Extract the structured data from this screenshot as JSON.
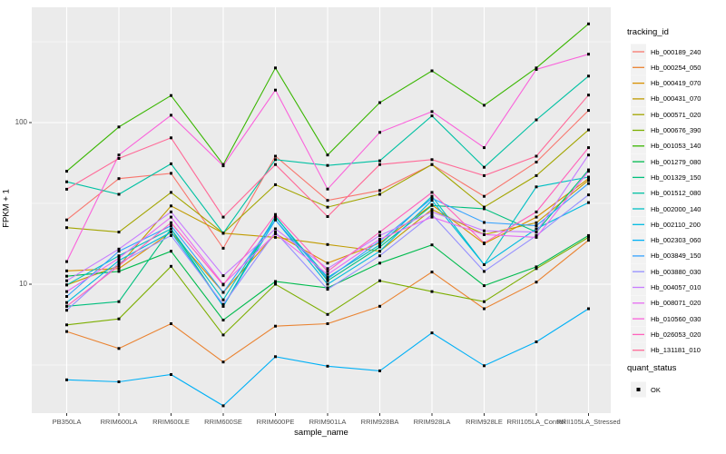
{
  "colors": {
    "page_bg": "#FFFFFF",
    "panel_bg": "#EBEBEB",
    "grid": "#FFFFFF",
    "legend_key_bg": "#F2F2F2",
    "axis_text": "#4D4D4D",
    "title_text": "#000000",
    "point": "#000000",
    "tick_mark": "#333333"
  },
  "chart_data": {
    "type": "line",
    "title": "",
    "xlabel": "sample_name",
    "ylabel": "FPKM + 1",
    "y_scale": "log10",
    "y_ticks": [
      10,
      100
    ],
    "y_minor_ticks": [
      3.162,
      31.62,
      316.2
    ],
    "ylim": [
      1.55,
      520
    ],
    "grid": "on",
    "point_shape": "filled-black-square",
    "categories": [
      "PB350LA",
      "RRIM600LA",
      "RRIM600LE",
      "RRIM600SE",
      "RRIM600PE",
      "RRIM901LA",
      "RRIM928BA",
      "RRIM928LA",
      "RRIM928LE",
      "RRII105LA_Control",
      "RRII105LA_Stressed"
    ],
    "legend": {
      "title": "tracking_id",
      "position": "right"
    },
    "legend2": {
      "title": "quant_status",
      "items": [
        {
          "label": "OK"
        }
      ]
    },
    "series": [
      {
        "name": "Hb_000189_240",
        "color": "#F8766D",
        "values": [
          25,
          45,
          48.5,
          16.7,
          62,
          33,
          38,
          55,
          35,
          57,
          119
        ]
      },
      {
        "name": "Hb_000254_050",
        "color": "#EA8331",
        "values": [
          5.1,
          4.0,
          5.7,
          3.3,
          5.5,
          5.7,
          7.3,
          11.9,
          7.05,
          10.3,
          18.7
        ]
      },
      {
        "name": "Hb_000419_070",
        "color": "#D89000",
        "values": [
          12.1,
          12.5,
          21,
          8.9,
          20.5,
          13.5,
          18,
          31,
          17.8,
          26,
          45
        ]
      },
      {
        "name": "Hb_000431_070",
        "color": "#C09B00",
        "values": [
          9.9,
          13,
          30.5,
          20.7,
          19.5,
          17.6,
          16,
          29,
          20.3,
          24,
          44
        ]
      },
      {
        "name": "Hb_000571_020",
        "color": "#A3A500",
        "values": [
          22.4,
          21,
          37,
          20.7,
          41.3,
          30,
          36,
          55,
          30,
          47,
          90
        ]
      },
      {
        "name": "Hb_000676_390",
        "color": "#7CAE00",
        "values": [
          5.6,
          6.1,
          12.9,
          4.85,
          10,
          6.5,
          10.5,
          9.0,
          7.8,
          12.5,
          19.5
        ]
      },
      {
        "name": "Hb_001053_140",
        "color": "#39B600",
        "values": [
          50,
          94,
          147,
          55,
          218,
          63,
          133,
          209,
          128,
          218,
          408
        ]
      },
      {
        "name": "Hb_001279_080",
        "color": "#00BB4E",
        "values": [
          11.2,
          12,
          16,
          6.0,
          10.4,
          9.5,
          13.5,
          17.5,
          9.8,
          12.8,
          20
        ]
      },
      {
        "name": "Hb_001329_150",
        "color": "#00BF7D",
        "values": [
          7.3,
          7.8,
          22,
          7.3,
          26.3,
          10.5,
          17,
          30.7,
          29.3,
          21,
          51
        ]
      },
      {
        "name": "Hb_001512_080",
        "color": "#00C1A3",
        "values": [
          43,
          36,
          55.6,
          20.7,
          59,
          54.3,
          58,
          110,
          52.9,
          104,
          194
        ]
      },
      {
        "name": "Hb_002000_140",
        "color": "#00BFC4",
        "values": [
          9.9,
          15,
          22,
          8.0,
          26,
          11,
          17.5,
          35,
          13.2,
          40,
          46
        ]
      },
      {
        "name": "Hb_002110_200",
        "color": "#00BAE0",
        "values": [
          7.7,
          14,
          21,
          7.3,
          25,
          10,
          16,
          33,
          13.2,
          22,
          32
        ]
      },
      {
        "name": "Hb_002303_060",
        "color": "#00B0F6",
        "values": [
          2.56,
          2.49,
          2.76,
          1.77,
          3.56,
          3.11,
          2.91,
          5.0,
          3.13,
          4.4,
          7.05
        ]
      },
      {
        "name": "Hb_003849_150",
        "color": "#35A2FF",
        "values": [
          8.4,
          16,
          23,
          8.9,
          25,
          10.8,
          18.5,
          34,
          24.1,
          23,
          42
        ]
      },
      {
        "name": "Hb_003880_030",
        "color": "#9590FF",
        "values": [
          6.9,
          13.5,
          20,
          7.5,
          21,
          9.3,
          15,
          27,
          12,
          20,
          35.7
        ]
      },
      {
        "name": "Hb_004057_010",
        "color": "#C77CFF",
        "values": [
          10.5,
          16.5,
          28,
          11.3,
          22,
          12.5,
          20,
          28,
          21.4,
          21,
          63
        ]
      },
      {
        "name": "Hb_008071_020",
        "color": "#E76BF3",
        "values": [
          9.0,
          14.5,
          26,
          10,
          20.5,
          11.5,
          19,
          26,
          20.3,
          19.5,
          50
        ]
      },
      {
        "name": "Hb_010560_030",
        "color": "#FA62DB",
        "values": [
          13.8,
          63,
          111,
          54,
          159,
          38.8,
          87,
          117,
          70,
          213,
          265
        ]
      },
      {
        "name": "Hb_026053_020",
        "color": "#FF62BC",
        "values": [
          7.3,
          13,
          24,
          9.9,
          27,
          12,
          21,
          37,
          18,
          28,
          70
        ]
      },
      {
        "name": "Hb_131181_010",
        "color": "#FF6A98",
        "values": [
          38.7,
          60,
          80.5,
          26,
          55,
          26.2,
          55,
          59,
          47,
          62,
          148
        ]
      }
    ]
  }
}
